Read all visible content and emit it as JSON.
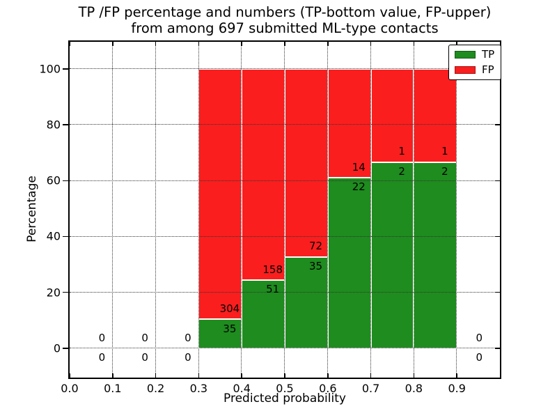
{
  "chart_data": {
    "type": "bar",
    "stacked": true,
    "title_lines": [
      "TP /FP percentage and numbers (TP-bottom value, FP-upper)",
      "from among 697 submitted ML-type contacts"
    ],
    "xlabel": "Predicted probability",
    "ylabel": "Percentage",
    "xlim": [
      0.0,
      1.0
    ],
    "ylim": [
      -10.5,
      109.7
    ],
    "xticks": [
      0.0,
      0.1,
      0.2,
      0.3,
      0.4,
      0.5,
      0.6,
      0.7,
      0.8,
      0.9
    ],
    "yticks": [
      0,
      20,
      40,
      60,
      80,
      100
    ],
    "grid": true,
    "grid_style": "dotted",
    "total_contacts": 697,
    "colors": {
      "tp": "#1e8c1e",
      "fp": "#fa1e1e"
    },
    "legend": {
      "position": "upper right",
      "entries": [
        {
          "name": "tp",
          "label": "TP",
          "color": "#1e8c1e"
        },
        {
          "name": "fp",
          "label": "FP",
          "color": "#fa1e1e"
        }
      ]
    },
    "bins": [
      {
        "x0": 0.0,
        "x1": 0.1,
        "tp": 0,
        "fp": 0,
        "label_x": 0.075
      },
      {
        "x0": 0.1,
        "x1": 0.2,
        "tp": 0,
        "fp": 0,
        "label_x": 0.175
      },
      {
        "x0": 0.2,
        "x1": 0.3,
        "tp": 0,
        "fp": 0,
        "label_x": 0.275
      },
      {
        "x0": 0.3,
        "x1": 0.4,
        "tp": 35,
        "fp": 304,
        "label_x": 0.372
      },
      {
        "x0": 0.4,
        "x1": 0.5,
        "tp": 51,
        "fp": 158,
        "label_x": 0.472
      },
      {
        "x0": 0.5,
        "x1": 0.6,
        "tp": 35,
        "fp": 72,
        "label_x": 0.572
      },
      {
        "x0": 0.6,
        "x1": 0.7,
        "tp": 22,
        "fp": 14,
        "label_x": 0.672
      },
      {
        "x0": 0.7,
        "x1": 0.8,
        "tp": 2,
        "fp": 1,
        "label_x": 0.772
      },
      {
        "x0": 0.8,
        "x1": 0.9,
        "tp": 2,
        "fp": 1,
        "label_x": 0.872
      },
      {
        "x0": 0.9,
        "x1": 1.0,
        "tp": 0,
        "fp": 0,
        "label_x": 0.952
      }
    ]
  }
}
